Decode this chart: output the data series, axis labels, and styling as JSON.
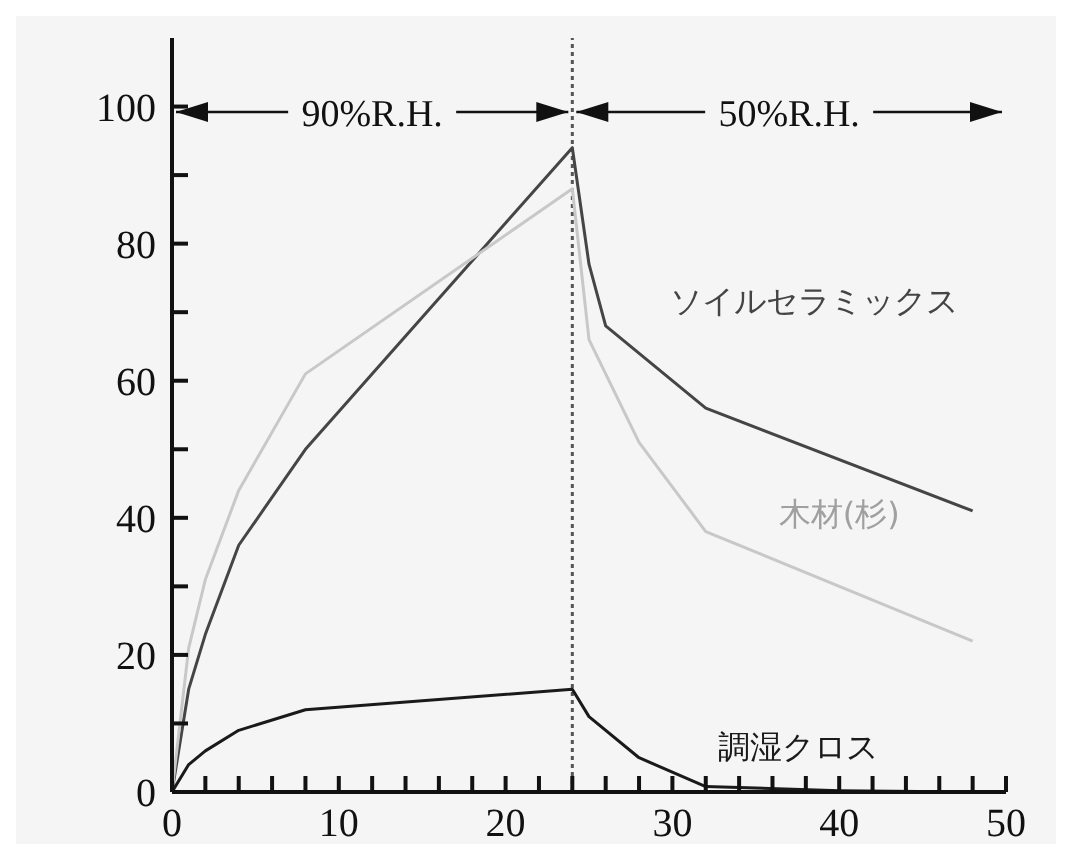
{
  "chart_data": {
    "type": "line",
    "xlim": [
      0,
      50
    ],
    "ylim": [
      0,
      110
    ],
    "xticks": [
      0,
      {
        "value": 2,
        "label": null
      },
      {
        "value": 4,
        "label": null
      },
      {
        "value": 6,
        "label": null
      },
      {
        "value": 8,
        "label": null
      },
      10,
      {
        "value": 12,
        "label": null
      },
      {
        "value": 14,
        "label": null
      },
      {
        "value": 16,
        "label": null
      },
      {
        "value": 18,
        "label": null
      },
      20,
      {
        "value": 22,
        "label": null
      },
      {
        "value": 24,
        "label": null
      },
      {
        "value": 26,
        "label": null
      },
      {
        "value": 28,
        "label": null
      },
      30,
      {
        "value": 32,
        "label": null
      },
      {
        "value": 34,
        "label": null
      },
      {
        "value": 36,
        "label": null
      },
      {
        "value": 38,
        "label": null
      },
      40,
      {
        "value": 42,
        "label": null
      },
      {
        "value": 44,
        "label": null
      },
      {
        "value": 46,
        "label": null
      },
      {
        "value": 48,
        "label": null
      },
      50
    ],
    "yticks": [
      0,
      {
        "value": 10,
        "label": null
      },
      20,
      {
        "value": 30,
        "label": null
      },
      40,
      {
        "value": 50,
        "label": null
      },
      60,
      {
        "value": 70,
        "label": null
      },
      80,
      {
        "value": 90,
        "label": null
      },
      100
    ],
    "grid": false,
    "legend": false,
    "marker": "none",
    "line_style": "solid",
    "series": [
      {
        "name": "ソイルセラミックス",
        "color": "#454545",
        "x": [
          0,
          1,
          2,
          4,
          8,
          24,
          25,
          26,
          32,
          48
        ],
        "values": [
          0,
          15,
          23,
          36,
          50,
          94,
          77,
          68,
          56,
          41
        ]
      },
      {
        "name": "木材(杉)",
        "color": "#c8c8c8",
        "x": [
          0,
          1,
          2,
          4,
          8,
          24,
          25,
          28,
          32,
          48
        ],
        "values": [
          0,
          21,
          31,
          44,
          61,
          88,
          66,
          51,
          38,
          22
        ]
      },
      {
        "name": "調湿クロス",
        "color": "#1a1a1a",
        "x": [
          0,
          1,
          2,
          4,
          8,
          24,
          25,
          28,
          32,
          40,
          48
        ],
        "values": [
          0,
          4,
          6,
          9,
          12,
          15,
          11,
          5,
          0.8,
          0.2,
          0
        ]
      }
    ],
    "ref_lines": [
      {
        "axis": "x",
        "value": 24,
        "line_style": "dotted",
        "color": "#555555"
      }
    ],
    "annotations": [
      "90%R.H.",
      "50%R.H."
    ]
  }
}
